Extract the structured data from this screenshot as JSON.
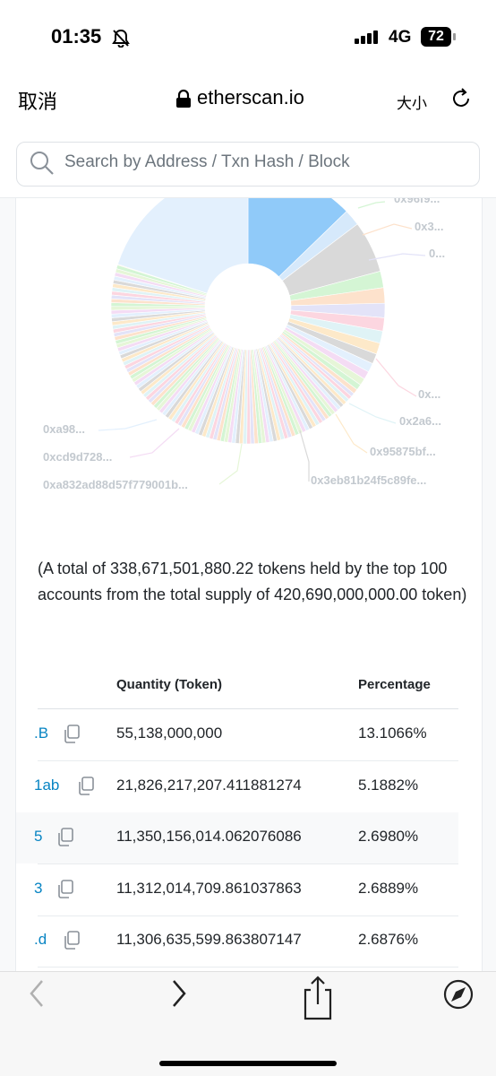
{
  "status": {
    "time": "01:35",
    "network": "4G",
    "battery": "72"
  },
  "browser": {
    "cancel": "取消",
    "url": "etherscan.io",
    "text_size": "大小"
  },
  "search": {
    "placeholder": "Search by Address / Txn Hash / Block"
  },
  "chart": {
    "labels": [
      "0x96f9...",
      "0x3...",
      "0...",
      "0x...",
      "0x2a6...",
      "0x95875bf...",
      "0x3eb81b24f5c89fe...",
      "0xa98...",
      "0xcd9d728...",
      "0xa832ad88d57f779001b..."
    ]
  },
  "summary": "(A total of 338,671,501,880.22 tokens held by the top 100 accounts from the total supply of 420,690,000,000.00 token)",
  "table": {
    "headers": [
      "Quantity (Token)",
      "Percentage"
    ],
    "rows": [
      [
        ".B",
        "55,138,000,000",
        "13.1066%"
      ],
      [
        "1ab",
        "21,826,217,207.411881274",
        "5.1882%"
      ],
      [
        "5",
        "11,350,156,014.062076086",
        "2.6980%"
      ],
      [
        "3",
        "11,312,014,709.861037863",
        "2.6889%"
      ],
      [
        ".d",
        "11,306,635,599.863807147",
        "2.6876%"
      ]
    ]
  }
}
